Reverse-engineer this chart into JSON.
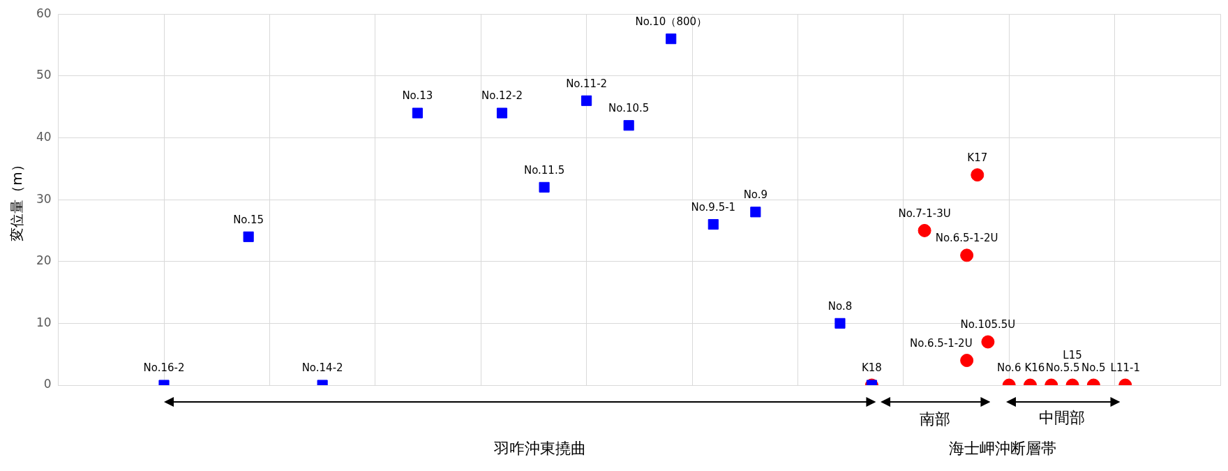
{
  "chart_data": {
    "type": "scatter",
    "ylabel": "変位量（m）",
    "categories": [
      null,
      null,
      null,
      null,
      null,
      null,
      null,
      null,
      null,
      null,
      null,
      null,
      null,
      null,
      null,
      null,
      null,
      null,
      null,
      null,
      null,
      null,
      null,
      null,
      null,
      null,
      null,
      null,
      null,
      null,
      null,
      null,
      null,
      null,
      null,
      null,
      null,
      null,
      null,
      null,
      null,
      null,
      null,
      null,
      null,
      null,
      null,
      null,
      null,
      null,
      null,
      null,
      null,
      null,
      null,
      null,
      null,
      null,
      null,
      null,
      null,
      null,
      null,
      null,
      null,
      null,
      null,
      null,
      null,
      null,
      null,
      null,
      null,
      null,
      null,
      null,
      null,
      null,
      null,
      null,
      null,
      null,
      null,
      null,
      null,
      null,
      null,
      null,
      null,
      null,
      null,
      null,
      null,
      null,
      null,
      null,
      null,
      null,
      null,
      null,
      null,
      null,
      null,
      null,
      null,
      null,
      null,
      null,
      null,
      null,
      null
    ],
    "ylim": [
      0,
      60
    ],
    "yticks": [
      0,
      10,
      20,
      30,
      40,
      50,
      60
    ],
    "grid": true,
    "legend": false,
    "tick_labels": "y",
    "series": [
      {
        "color": "#0000ff",
        "marker": "square",
        "values": [
          null,
          null,
          null,
          null,
          null,
          null,
          null,
          null,
          null,
          null,
          0,
          null,
          null,
          null,
          null,
          null,
          null,
          null,
          24,
          null,
          null,
          null,
          null,
          null,
          null,
          0,
          null,
          null,
          null,
          null,
          null,
          null,
          null,
          null,
          44,
          null,
          null,
          null,
          null,
          null,
          null,
          null,
          44,
          null,
          null,
          null,
          32,
          null,
          null,
          null,
          46,
          null,
          null,
          null,
          42,
          null,
          null,
          null,
          56,
          null,
          null,
          null,
          26,
          null,
          null,
          null,
          28,
          null,
          null,
          null,
          null,
          null,
          null,
          null,
          10,
          null,
          null,
          0,
          null,
          null,
          null,
          null,
          null,
          null,
          null,
          null,
          null,
          null,
          null,
          null,
          null,
          null,
          null,
          null,
          null,
          null,
          null,
          null,
          null,
          null,
          null,
          null,
          null,
          null,
          null,
          null,
          null,
          null,
          null,
          null,
          null
        ],
        "value_labels": [
          null,
          null,
          null,
          null,
          null,
          null,
          null,
          null,
          null,
          null,
          "No.16-2",
          null,
          null,
          null,
          null,
          null,
          null,
          null,
          "No.15",
          null,
          null,
          null,
          null,
          null,
          null,
          "No.14-2",
          null,
          null,
          null,
          null,
          null,
          null,
          null,
          null,
          "No.13",
          null,
          null,
          null,
          null,
          null,
          null,
          null,
          "No.12-2",
          null,
          null,
          null,
          "No.11.5",
          null,
          null,
          null,
          "No.11-2",
          null,
          null,
          null,
          "No.10.5",
          null,
          null,
          null,
          "No.10（800）",
          null,
          null,
          null,
          "No.9.5-1",
          null,
          null,
          null,
          "No.9",
          null,
          null,
          null,
          null,
          null,
          null,
          null,
          "No.8",
          null,
          null,
          null,
          null,
          null,
          null,
          null,
          null,
          null,
          null,
          null,
          null,
          null,
          null,
          null,
          null,
          null,
          null,
          null,
          null,
          null,
          null,
          null,
          null,
          null,
          null,
          null,
          null,
          null,
          null,
          null,
          null,
          null,
          null,
          null,
          null
        ]
      },
      {
        "color": "#ff0000",
        "marker": "circle",
        "values": [
          null,
          null,
          null,
          null,
          null,
          null,
          null,
          null,
          null,
          null,
          null,
          null,
          null,
          null,
          null,
          null,
          null,
          null,
          null,
          null,
          null,
          null,
          null,
          null,
          null,
          null,
          null,
          null,
          null,
          null,
          null,
          null,
          null,
          null,
          null,
          null,
          null,
          null,
          null,
          null,
          null,
          null,
          null,
          null,
          null,
          null,
          null,
          null,
          null,
          null,
          null,
          null,
          null,
          null,
          null,
          null,
          null,
          null,
          null,
          null,
          null,
          null,
          null,
          null,
          null,
          null,
          null,
          null,
          null,
          null,
          null,
          null,
          null,
          null,
          null,
          null,
          null,
          0,
          null,
          null,
          null,
          null,
          25,
          null,
          null,
          null,
          21,
          34,
          7,
          null,
          0,
          null,
          0,
          null,
          0,
          null,
          0,
          null,
          0,
          null,
          null,
          0,
          null,
          null,
          null,
          null,
          null,
          null,
          null,
          null,
          null
        ],
        "value_labels": [
          null,
          null,
          null,
          null,
          null,
          null,
          null,
          null,
          null,
          null,
          null,
          null,
          null,
          null,
          null,
          null,
          null,
          null,
          null,
          null,
          null,
          null,
          null,
          null,
          null,
          null,
          null,
          null,
          null,
          null,
          null,
          null,
          null,
          null,
          null,
          null,
          null,
          null,
          null,
          null,
          null,
          null,
          null,
          null,
          null,
          null,
          null,
          null,
          null,
          null,
          null,
          null,
          null,
          null,
          null,
          null,
          null,
          null,
          null,
          null,
          null,
          null,
          null,
          null,
          null,
          null,
          null,
          null,
          null,
          null,
          null,
          null,
          null,
          null,
          null,
          null,
          null,
          "K18",
          null,
          null,
          null,
          null,
          "No.7-1-3U",
          null,
          null,
          null,
          "No.6.5-1-2U",
          "K17",
          "No.105.5U",
          null,
          "No.6",
          null,
          "K16",
          null,
          "No.5.5",
          null,
          "L15",
          null,
          "No.5",
          null,
          null,
          "L11-1",
          null,
          null,
          null,
          null,
          null,
          null,
          null,
          null,
          null
        ]
      },
      {
        "color": "#ff0000",
        "marker": "circle",
        "values": [
          null,
          null,
          null,
          null,
          null,
          null,
          null,
          null,
          null,
          null,
          null,
          null,
          null,
          null,
          null,
          null,
          null,
          null,
          null,
          null,
          null,
          null,
          null,
          null,
          null,
          null,
          null,
          null,
          null,
          null,
          null,
          null,
          null,
          null,
          null,
          null,
          null,
          null,
          null,
          null,
          null,
          null,
          null,
          null,
          null,
          null,
          null,
          null,
          null,
          null,
          null,
          null,
          null,
          null,
          null,
          null,
          null,
          null,
          null,
          null,
          null,
          null,
          null,
          null,
          null,
          null,
          null,
          null,
          null,
          null,
          null,
          null,
          null,
          null,
          null,
          null,
          null,
          null,
          null,
          null,
          null,
          null,
          null,
          null,
          null,
          null,
          4,
          null,
          null,
          null,
          null,
          null,
          null,
          null,
          null,
          null,
          null,
          null,
          null,
          null,
          null,
          null,
          null,
          null,
          null,
          null,
          null,
          null,
          null,
          null,
          null
        ],
        "value_labels": [
          null,
          null,
          null,
          null,
          null,
          null,
          null,
          null,
          null,
          null,
          null,
          null,
          null,
          null,
          null,
          null,
          null,
          null,
          null,
          null,
          null,
          null,
          null,
          null,
          null,
          null,
          null,
          null,
          null,
          null,
          null,
          null,
          null,
          null,
          null,
          null,
          null,
          null,
          null,
          null,
          null,
          null,
          null,
          null,
          null,
          null,
          null,
          null,
          null,
          null,
          null,
          null,
          null,
          null,
          null,
          null,
          null,
          null,
          null,
          null,
          null,
          null,
          null,
          null,
          null,
          null,
          null,
          null,
          null,
          null,
          null,
          null,
          null,
          null,
          null,
          null,
          null,
          null,
          null,
          null,
          null,
          null,
          null,
          null,
          null,
          null,
          "No.6.5-1-2U",
          null,
          null,
          null,
          null,
          null,
          null,
          null,
          null,
          null,
          null,
          null,
          null,
          null,
          null,
          null,
          null,
          null,
          null,
          null,
          null,
          null,
          null,
          null,
          null
        ]
      }
    ],
    "annotations": [
      "羽咋沖東撓曲",
      "南部",
      "中間部",
      "海士岬沖断層帯"
    ]
  }
}
